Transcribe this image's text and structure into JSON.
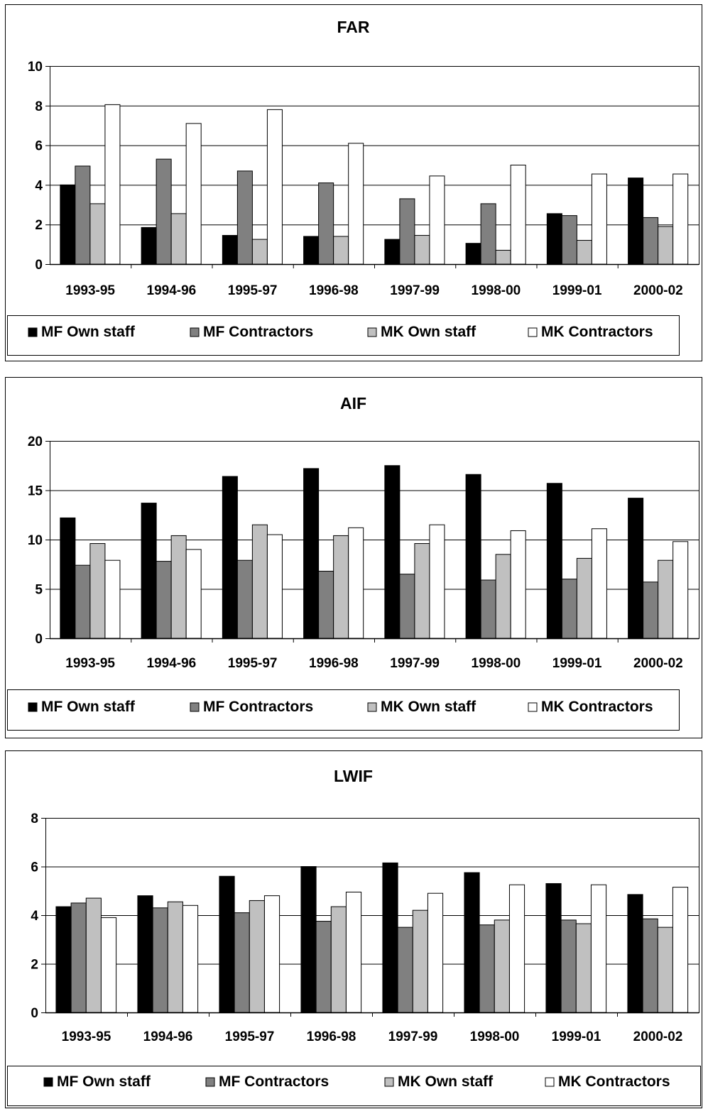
{
  "colors": {
    "mf_own": "#000000",
    "mf_contractors": "#808080",
    "mk_own": "#c0c0c0",
    "mk_contractors": "#ffffff",
    "grid": "#000000",
    "frame": "#000000"
  },
  "chart_data": [
    {
      "type": "bar",
      "title": "FAR",
      "categories": [
        "1993-95",
        "1994-96",
        "1995-97",
        "1996-98",
        "1997-99",
        "1998-00",
        "1999-01",
        "2000-02"
      ],
      "ylim": [
        0,
        10
      ],
      "yticks": [
        "0",
        "2",
        "4",
        "6",
        "8",
        "10"
      ],
      "grid": true,
      "legend_position": "bottom",
      "series": [
        {
          "name": "MF Own staff",
          "color": "#000000",
          "values": [
            4.0,
            1.85,
            1.45,
            1.4,
            1.25,
            1.05,
            2.55,
            4.35
          ]
        },
        {
          "name": "MF Contractors",
          "color": "#808080",
          "values": [
            4.95,
            5.3,
            4.7,
            4.1,
            3.3,
            3.05,
            2.45,
            2.35
          ]
        },
        {
          "name": "MK Own staff",
          "color": "#c0c0c0",
          "values": [
            3.05,
            2.55,
            1.25,
            1.4,
            1.45,
            0.7,
            1.2,
            1.9
          ]
        },
        {
          "name": "MK Contractors",
          "color": "#ffffff",
          "values": [
            8.05,
            7.1,
            7.8,
            6.1,
            4.45,
            5.0,
            4.55,
            4.55
          ]
        }
      ]
    },
    {
      "type": "bar",
      "title": "AIF",
      "categories": [
        "1993-95",
        "1994-96",
        "1995-97",
        "1996-98",
        "1997-99",
        "1998-00",
        "1999-01",
        "2000-02"
      ],
      "ylim": [
        0,
        20
      ],
      "yticks": [
        "0",
        "5",
        "10",
        "15",
        "20"
      ],
      "grid": true,
      "legend_position": "bottom",
      "series": [
        {
          "name": "MF Own staff",
          "color": "#000000",
          "values": [
            12.2,
            13.7,
            16.4,
            17.2,
            17.5,
            16.6,
            15.7,
            14.2
          ]
        },
        {
          "name": "MF Contractors",
          "color": "#808080",
          "values": [
            7.4,
            7.8,
            7.9,
            6.8,
            6.5,
            5.9,
            6.0,
            5.7
          ]
        },
        {
          "name": "MK Own staff",
          "color": "#c0c0c0",
          "values": [
            9.6,
            10.4,
            11.5,
            10.4,
            9.6,
            8.5,
            8.1,
            7.9
          ]
        },
        {
          "name": "MK Contractors",
          "color": "#ffffff",
          "values": [
            7.9,
            9.0,
            10.5,
            11.2,
            11.5,
            10.9,
            11.1,
            9.8
          ]
        }
      ]
    },
    {
      "type": "bar",
      "title": "LWIF",
      "categories": [
        "1993-95",
        "1994-96",
        "1995-97",
        "1996-98",
        "1997-99",
        "1998-00",
        "1999-01",
        "2000-02"
      ],
      "ylim": [
        0,
        8
      ],
      "yticks": [
        "0",
        "2",
        "4",
        "6",
        "8"
      ],
      "grid": true,
      "legend_position": "bottom",
      "series": [
        {
          "name": "MF Own staff",
          "color": "#000000",
          "values": [
            4.35,
            4.8,
            5.6,
            6.0,
            6.15,
            5.75,
            5.3,
            4.85
          ]
        },
        {
          "name": "MF Contractors",
          "color": "#808080",
          "values": [
            4.5,
            4.3,
            4.1,
            3.75,
            3.5,
            3.6,
            3.8,
            3.85
          ]
        },
        {
          "name": "MK Own staff",
          "color": "#c0c0c0",
          "values": [
            4.7,
            4.55,
            4.6,
            4.35,
            4.2,
            3.8,
            3.65,
            3.5
          ]
        },
        {
          "name": "MK Contractors",
          "color": "#ffffff",
          "values": [
            3.9,
            4.4,
            4.8,
            4.95,
            4.9,
            5.25,
            5.25,
            5.15
          ]
        }
      ]
    }
  ]
}
